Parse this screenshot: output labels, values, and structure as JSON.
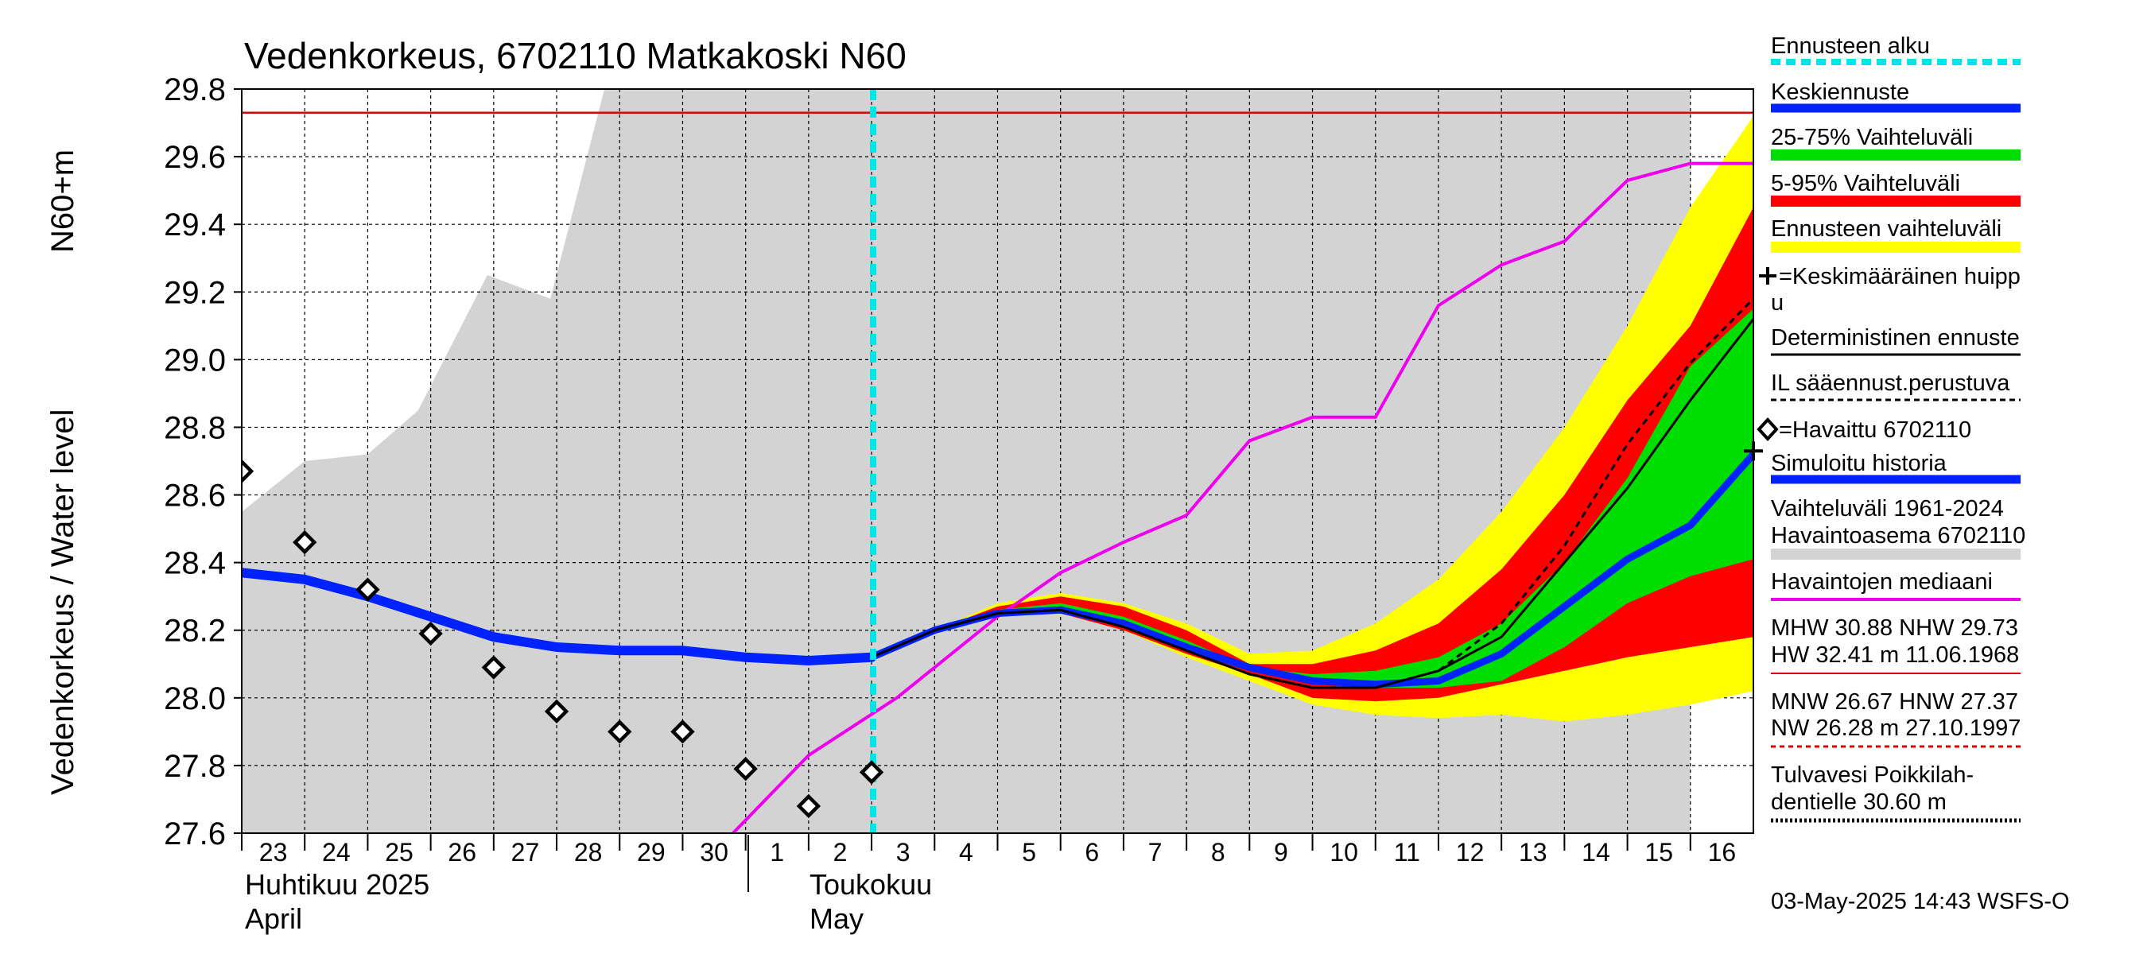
{
  "chart_data": {
    "type": "line",
    "title": "Vedenkorkeus, 6702110 Matkakoski N60",
    "ylabel": "Vedenkorkeus / Water level",
    "ylabel_unit": "N60+m",
    "ylim": [
      27.6,
      29.8
    ],
    "yticks": [
      "29.8",
      "29.6",
      "29.4",
      "29.2",
      "29.0",
      "28.8",
      "28.6",
      "28.4",
      "28.2",
      "28.0",
      "27.8",
      "27.6"
    ],
    "grid": true,
    "x_days": [
      "23",
      "24",
      "25",
      "26",
      "27",
      "28",
      "29",
      "30",
      "1",
      "2",
      "3",
      "4",
      "5",
      "6",
      "7",
      "8",
      "9",
      "10",
      "11",
      "12",
      "13",
      "14",
      "15",
      "16"
    ],
    "x_months": [
      {
        "fi": "Huhtikuu  2025",
        "en": "April",
        "start_day_index": 0
      },
      {
        "fi": "Toukokuu",
        "en": "May",
        "start_day_index": 8
      }
    ],
    "forecast_start_day_index": 10,
    "hw_line_level": 29.73,
    "history_range": {
      "x": [
        0,
        1,
        2,
        2.8,
        3.9,
        4.9,
        5.8,
        22.5,
        23
      ],
      "upper": [
        28.55,
        28.7,
        28.72,
        28.85,
        29.25,
        29.18,
        29.83,
        29.83,
        29.83
      ],
      "lower": [
        27.6,
        27.6,
        27.6,
        27.6,
        27.6,
        27.6,
        27.6,
        27.6,
        27.6
      ]
    },
    "forecast_x": [
      10,
      11,
      12,
      13,
      14,
      15,
      16,
      17,
      18,
      19,
      20,
      21,
      22,
      23
    ],
    "band_forecast": {
      "upper": [
        28.12,
        28.2,
        28.28,
        28.31,
        28.28,
        28.22,
        28.13,
        28.14,
        28.22,
        28.35,
        28.55,
        28.8,
        29.1,
        29.45,
        29.72
      ],
      "lower": [
        28.12,
        28.2,
        28.25,
        28.25,
        28.2,
        28.12,
        28.05,
        27.98,
        27.95,
        27.94,
        27.95,
        27.93,
        27.95,
        27.98,
        28.02
      ]
    },
    "band_5_95": {
      "upper": [
        28.12,
        28.2,
        28.27,
        28.3,
        28.27,
        28.2,
        28.1,
        28.1,
        28.14,
        28.22,
        28.38,
        28.6,
        28.88,
        29.1,
        29.45
      ],
      "lower": [
        28.12,
        28.2,
        28.25,
        28.25,
        28.2,
        28.13,
        28.07,
        28.0,
        27.99,
        28.0,
        28.04,
        28.08,
        28.12,
        28.15,
        28.18
      ]
    },
    "band_25_75": {
      "upper": [
        28.12,
        28.2,
        28.26,
        28.28,
        28.24,
        28.17,
        28.09,
        28.07,
        28.08,
        28.12,
        28.22,
        28.4,
        28.65,
        28.98,
        29.15
      ],
      "lower": [
        28.12,
        28.2,
        28.25,
        28.25,
        28.21,
        28.14,
        28.08,
        28.04,
        28.03,
        28.03,
        28.05,
        28.15,
        28.28,
        28.36,
        28.41
      ]
    },
    "forecast_band_x": [
      10,
      11,
      12,
      13,
      14,
      15,
      16,
      17,
      18,
      19,
      20,
      21,
      22,
      23,
      24
    ],
    "simulated_history": {
      "x": [
        0,
        1,
        2,
        3,
        4,
        5,
        6,
        7,
        8,
        9,
        10
      ],
      "y": [
        28.37,
        28.35,
        28.3,
        28.24,
        28.18,
        28.15,
        28.14,
        28.14,
        28.12,
        28.11,
        28.12
      ]
    },
    "mean_forecast": {
      "x": [
        10,
        11,
        12,
        13,
        14,
        15,
        16,
        17,
        18,
        19,
        20,
        21,
        22,
        23,
        24
      ],
      "y": [
        28.12,
        28.2,
        28.25,
        28.26,
        28.22,
        28.15,
        28.09,
        28.05,
        28.04,
        28.05,
        28.13,
        28.27,
        28.41,
        28.51,
        28.72
      ]
    },
    "deterministic_forecast": {
      "x": [
        10,
        11,
        12,
        13,
        14,
        15,
        16,
        17,
        18,
        19,
        20,
        21,
        22,
        23,
        24
      ],
      "y": [
        28.12,
        28.2,
        28.25,
        28.26,
        28.21,
        28.14,
        28.07,
        28.03,
        28.03,
        28.08,
        28.18,
        28.4,
        28.62,
        28.88,
        29.12
      ]
    },
    "il_forecast": {
      "x": [
        10,
        11,
        12,
        13,
        14,
        15,
        16,
        17,
        18,
        19,
        20,
        21,
        22,
        23,
        24
      ],
      "y": [
        28.12,
        28.2,
        28.25,
        28.26,
        28.21,
        28.14,
        28.07,
        28.03,
        28.03,
        28.08,
        28.22,
        28.45,
        28.75,
        28.99,
        29.18
      ]
    },
    "observed": {
      "x": [
        0,
        1,
        2,
        3,
        4,
        5,
        6,
        7,
        8,
        9,
        10
      ],
      "y": [
        28.67,
        28.46,
        28.32,
        28.19,
        28.09,
        27.96,
        27.9,
        27.9,
        27.79,
        27.68,
        27.78
      ]
    },
    "median_observed": {
      "x": [
        7.8,
        9,
        10.4,
        12,
        13,
        14,
        15,
        16,
        17,
        18,
        19,
        20,
        21,
        22,
        23,
        24
      ],
      "y": [
        27.6,
        27.83,
        28.0,
        28.24,
        28.37,
        28.46,
        28.54,
        28.76,
        28.83,
        28.83,
        29.16,
        29.28,
        29.35,
        29.53,
        29.58,
        29.58
      ]
    },
    "mean_peak_marker": {
      "x": 24,
      "y": 28.73
    },
    "colors": {
      "history_range": "#d3d3d3",
      "forecast_start": "#00e5e5",
      "mean_forecast": "#0022ff",
      "band_25_75": "#00dd00",
      "band_5_95": "#ff0000",
      "band_forecast": "#ffff00",
      "deterministic": "#000000",
      "simulated_history": "#0022ff",
      "median": "#ee00ee",
      "hw_line": "#dd0000",
      "nw_line": "#dd0000"
    }
  },
  "legend": {
    "forecast_start": "Ennusteen alku",
    "mean_forecast": "Keskiennuste",
    "band_25_75": "25-75% Vaihteluväli",
    "band_5_95": "5-95% Vaihteluväli",
    "band_forecast": "Ennusteen vaihteluväli",
    "mean_peak_1": "=Keskimääräinen huipp",
    "mean_peak_2": "u",
    "deterministic": "Deterministinen ennuste",
    "il_forecast": "IL sääennust.perustuva",
    "observed": "=Havaittu 6702110",
    "simulated": "Simuloitu historia",
    "range_1": "Vaihteluväli 1961-2024",
    "range_2": " Havaintoasema 6702110",
    "median": "Havaintojen mediaani",
    "stats_1": "MHW  30.88 NHW  29.73",
    "stats_2": "HW  32.41 m 11.06.1968",
    "stats_3": "MNW  26.67 HNW  27.37",
    "stats_4": "NW  26.28 m 27.10.1997",
    "flood_1": "Tulvavesi Poikkilah-",
    "flood_2": "dentielle 30.60 m"
  },
  "timestamp": "03-May-2025 14:43 WSFS-O"
}
